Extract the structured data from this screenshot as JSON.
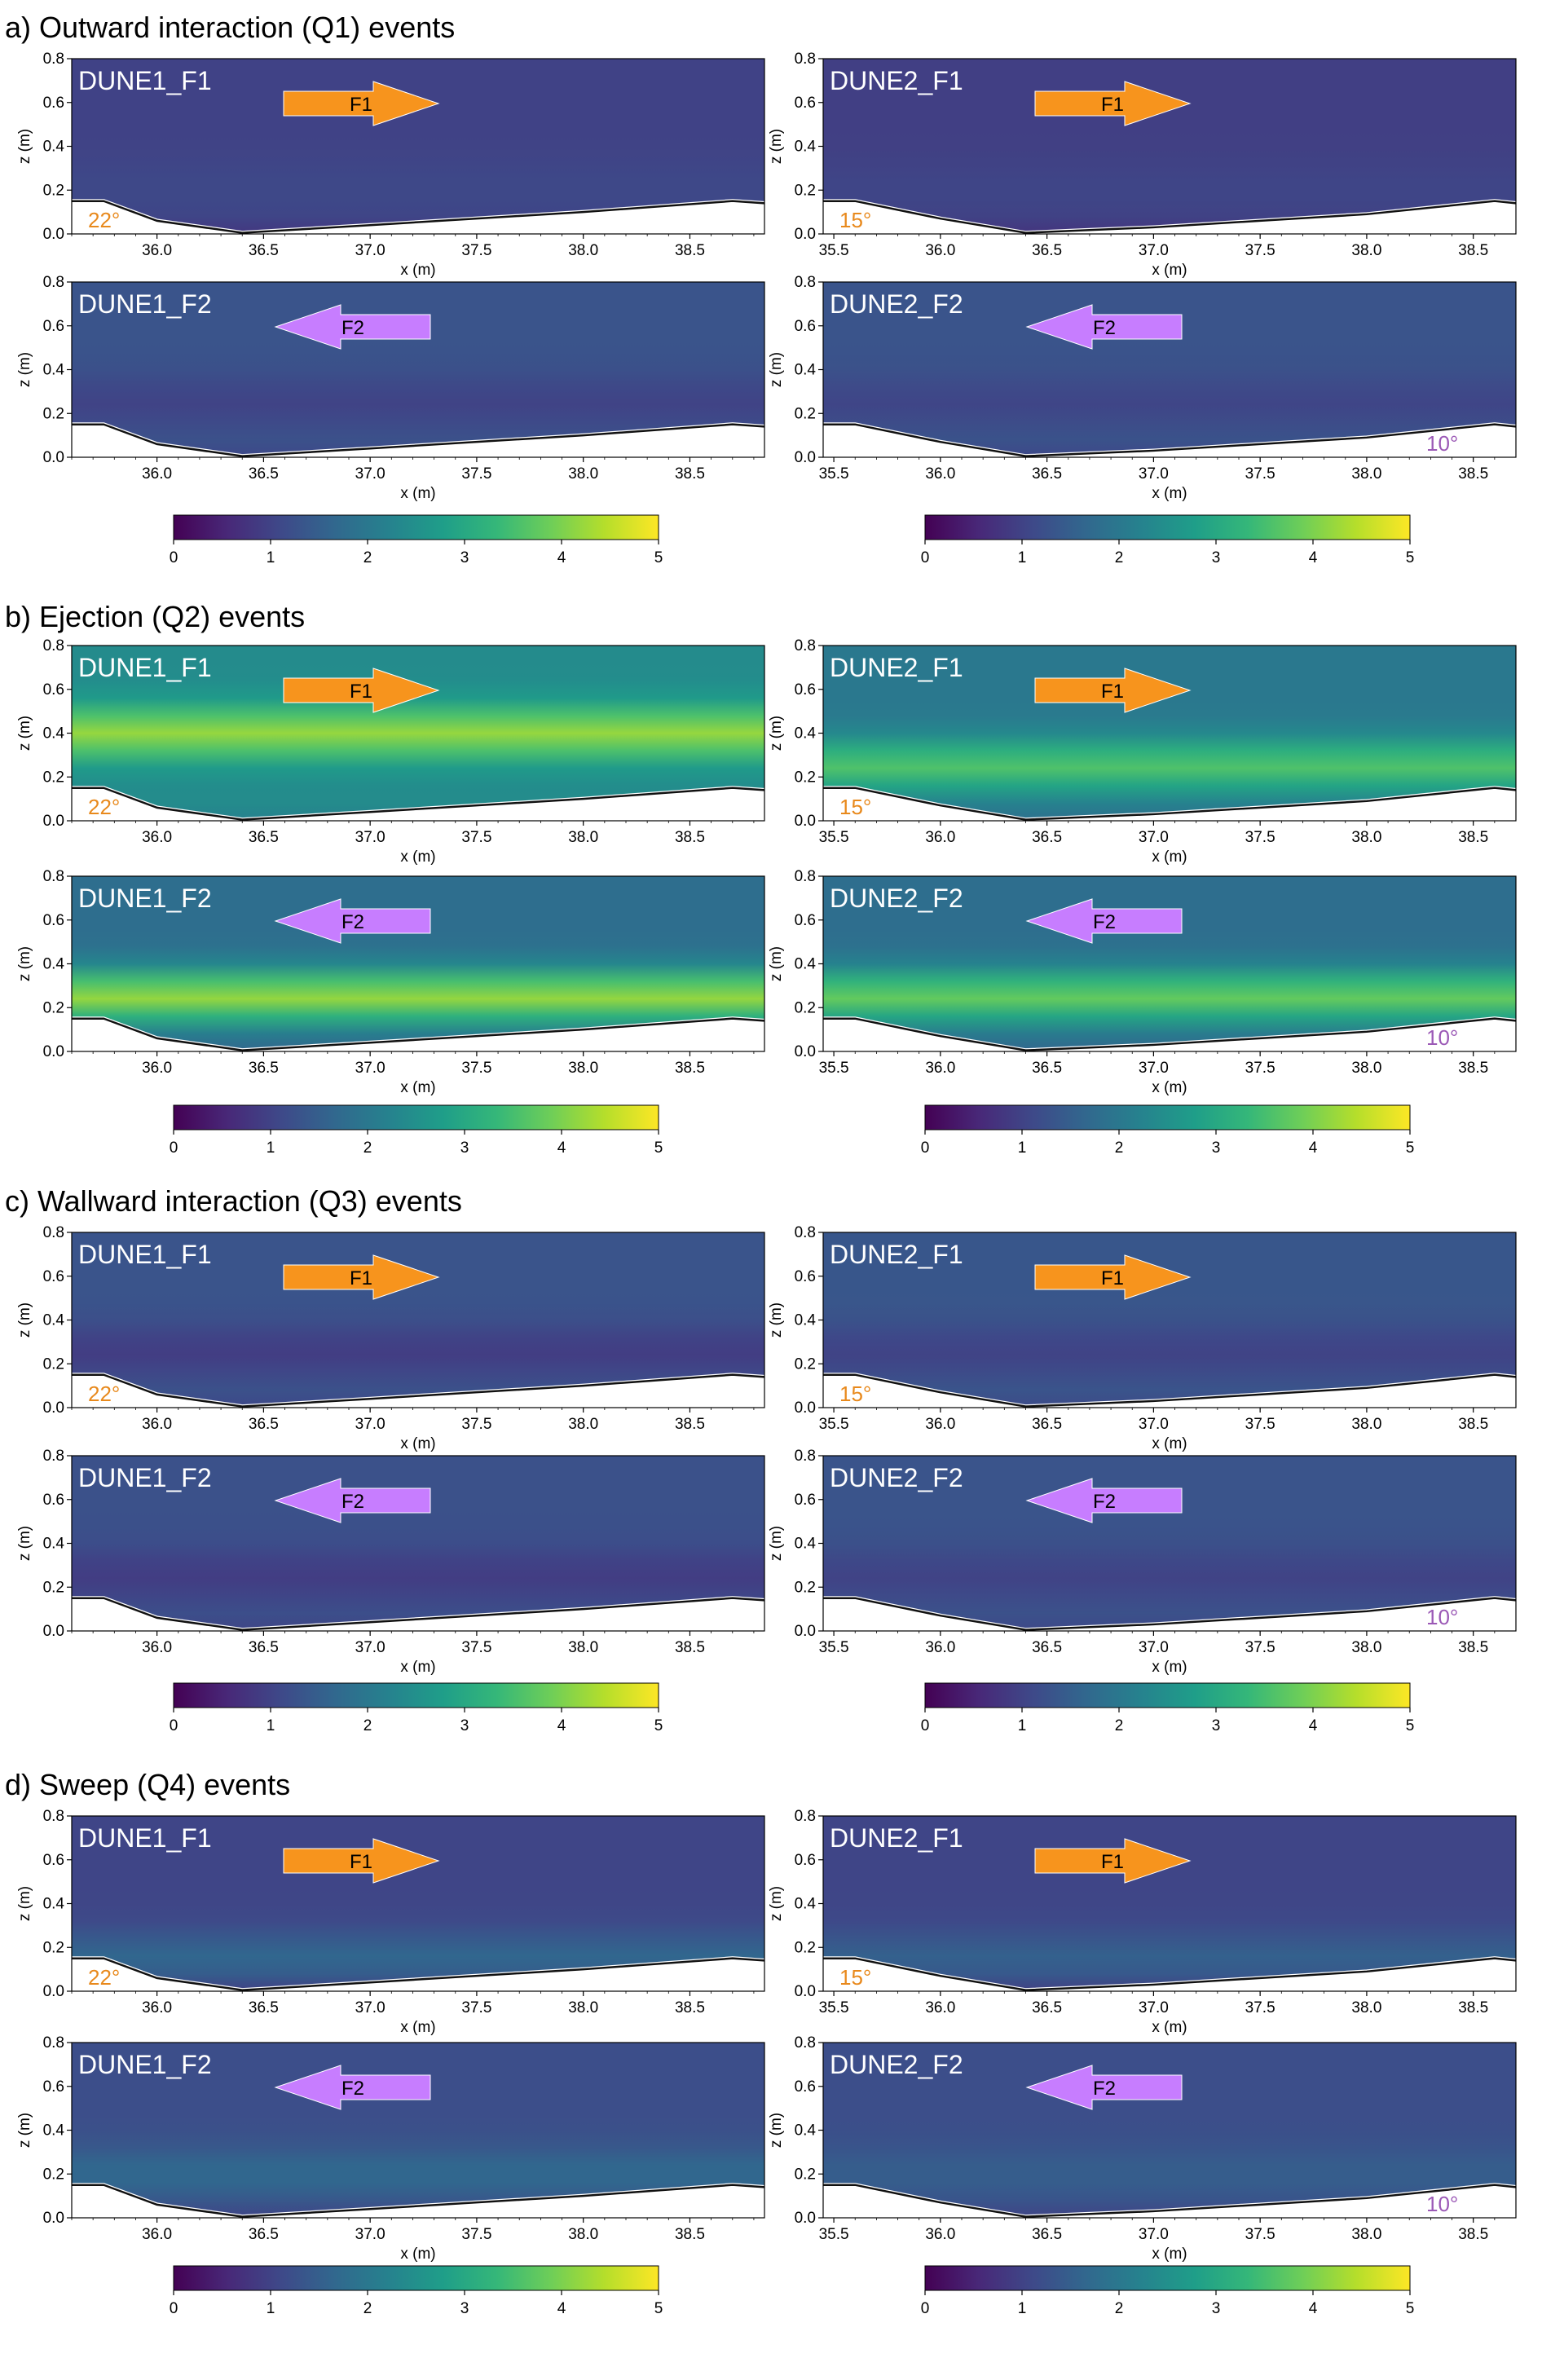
{
  "colors": {
    "viridis": [
      "#440154",
      "#482878",
      "#3e4989",
      "#31688e",
      "#26828e",
      "#1f9e89",
      "#35b779",
      "#6ece58",
      "#b5de2b",
      "#fde725"
    ],
    "arrow_f1": "#f7941d",
    "arrow_f2": "#c77dff",
    "angle_orange": "#e8891c",
    "angle_purple": "#9b59b6"
  },
  "chart_data": {
    "type": "heatmap",
    "colorbar": {
      "range": [
        0,
        5
      ],
      "ticks": [
        "0",
        "1",
        "2",
        "3",
        "4",
        "5"
      ]
    },
    "xlabel": "x (m)",
    "ylabel": "z (m)",
    "ylim": [
      0,
      0.8
    ],
    "yticks": [
      "0.0",
      "0.2",
      "0.4",
      "0.6",
      "0.8"
    ],
    "dune1": {
      "xlim": [
        35.6,
        38.85
      ],
      "xticks": [
        "36.0",
        "36.5",
        "37.0",
        "37.5",
        "38.0",
        "38.5"
      ],
      "bed_x": [
        35.6,
        35.75,
        36.0,
        36.4,
        37.0,
        38.0,
        38.7,
        38.85
      ],
      "bed_z": [
        0.15,
        0.15,
        0.06,
        0.005,
        0.04,
        0.1,
        0.15,
        0.14
      ]
    },
    "dune2": {
      "xlim": [
        35.45,
        38.7
      ],
      "xticks": [
        "35.5",
        "36.0",
        "36.5",
        "37.0",
        "37.5",
        "38.0",
        "38.5"
      ],
      "bed_x": [
        35.45,
        35.6,
        36.0,
        36.4,
        37.0,
        38.0,
        38.6,
        38.7
      ],
      "bed_z": [
        0.15,
        0.15,
        0.07,
        0.005,
        0.03,
        0.09,
        0.15,
        0.14
      ]
    },
    "sections": [
      {
        "title": "a) Outward interaction (Q1) events",
        "quadrant": "Q1",
        "panels": [
          {
            "label": "DUNE1_F1",
            "arrow": "F1",
            "angle": "22°",
            "mean": 1.0,
            "peak_z": 0.2,
            "peak": 0.1
          },
          {
            "label": "DUNE2_F1",
            "arrow": "F1",
            "angle": "15°",
            "mean": 0.95,
            "peak_z": 0.2,
            "peak": 0.1
          },
          {
            "label": "DUNE1_F2",
            "arrow": "F2",
            "angle": "",
            "mean": 1.3,
            "peak_z": 0.25,
            "peak": -0.3
          },
          {
            "label": "DUNE2_F2",
            "arrow": "F2",
            "angle": "10°",
            "mean": 1.3,
            "peak_z": 0.25,
            "peak": -0.25
          }
        ]
      },
      {
        "title": "b) Ejection (Q2) events",
        "quadrant": "Q2",
        "panels": [
          {
            "label": "DUNE1_F1",
            "arrow": "F1",
            "angle": "22°",
            "mean": 2.4,
            "peak_z": 0.4,
            "peak": 1.8
          },
          {
            "label": "DUNE2_F1",
            "arrow": "F1",
            "angle": "15°",
            "mean": 2.0,
            "peak_z": 0.25,
            "peak": 1.6
          },
          {
            "label": "DUNE1_F2",
            "arrow": "F2",
            "angle": "",
            "mean": 1.8,
            "peak_z": 0.25,
            "peak": 2.4
          },
          {
            "label": "DUNE2_F2",
            "arrow": "F2",
            "angle": "10°",
            "mean": 1.8,
            "peak_z": 0.25,
            "peak": 2.0
          }
        ]
      },
      {
        "title": "c) Wallward interaction (Q3) events",
        "quadrant": "Q3",
        "panels": [
          {
            "label": "DUNE1_F1",
            "arrow": "F1",
            "angle": "22°",
            "mean": 1.3,
            "peak_z": 0.25,
            "peak": -0.4
          },
          {
            "label": "DUNE2_F1",
            "arrow": "F1",
            "angle": "15°",
            "mean": 1.35,
            "peak_z": 0.25,
            "peak": -0.35
          },
          {
            "label": "DUNE1_F2",
            "arrow": "F2",
            "angle": "",
            "mean": 1.25,
            "peak_z": 0.25,
            "peak": -0.35
          },
          {
            "label": "DUNE2_F2",
            "arrow": "F2",
            "angle": "10°",
            "mean": 1.3,
            "peak_z": 0.25,
            "peak": -0.3
          }
        ]
      },
      {
        "title": "d) Sweep (Q4) events",
        "quadrant": "Q4",
        "panels": [
          {
            "label": "DUNE1_F1",
            "arrow": "F1",
            "angle": "22°",
            "mean": 1.05,
            "peak_z": 0.15,
            "peak": 0.6
          },
          {
            "label": "DUNE2_F1",
            "arrow": "F1",
            "angle": "15°",
            "mean": 1.05,
            "peak_z": 0.15,
            "peak": 0.5
          },
          {
            "label": "DUNE1_F2",
            "arrow": "F2",
            "angle": "",
            "mean": 1.2,
            "peak_z": 0.2,
            "peak": 0.5
          },
          {
            "label": "DUNE2_F2",
            "arrow": "F2",
            "angle": "10°",
            "mean": 1.2,
            "peak_z": 0.2,
            "peak": 0.3
          }
        ]
      }
    ]
  }
}
